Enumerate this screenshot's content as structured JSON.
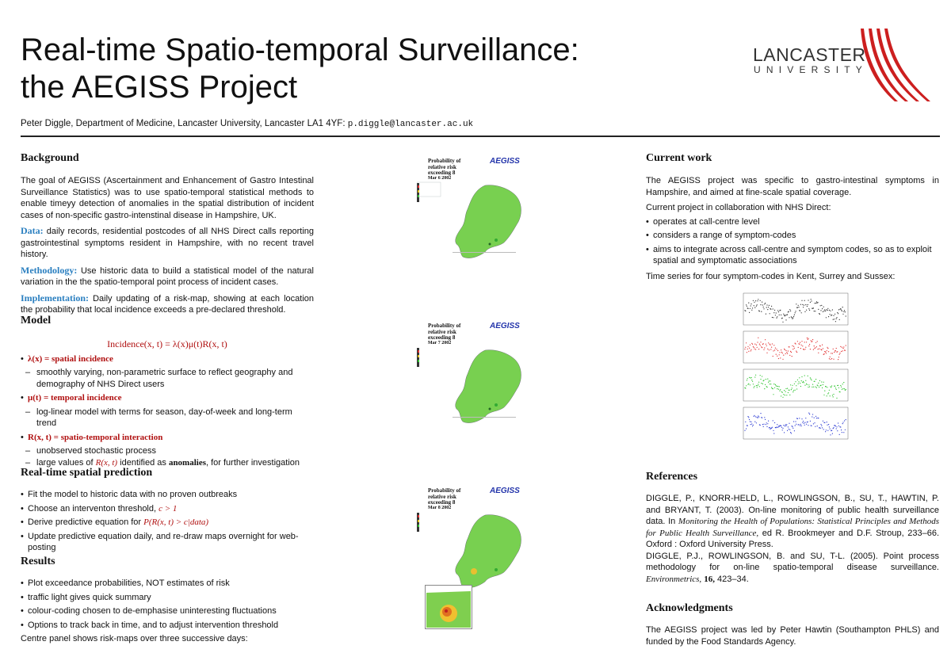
{
  "header": {
    "title_line1": "Real-time Spatio-temporal Surveillance:",
    "title_line2": "the AEGISS Project",
    "author": "Peter Diggle, Department of Medicine, Lancaster University, Lancaster LA1 4YF:",
    "email": "p.diggle@lancaster.ac.uk"
  },
  "logo": {
    "line1": "LANCASTER",
    "line2": "UNIVERSITY",
    "color": "#cc1f1f"
  },
  "background": {
    "heading": "Background",
    "intro": "The goal of AEGISS (Ascertainment and Enhancement of Gastro Intestinal Surveillance Statistics) was to use spatio-temporal statistical methods to enable timeyy detection of anomalies in the spatial distribution of incident cases of non-specific gastro-intenstinal disease in Hampshire, UK.",
    "data_label": "Data:",
    "data_text": "daily records, residential postcodes of all NHS Direct calls reporting gastrointestinal symptoms resident in Hampshire, with no recent travel history.",
    "method_label": "Methodology:",
    "method_text": "Use historic data to build a statistical model of the natural variation in the the spatio-temporal point process of incident cases.",
    "impl_label": "Implementation:",
    "impl_text": "Daily updating of a risk-map, showing at each location the probability that local incidence exceeds a pre-declared threshold."
  },
  "model": {
    "heading": "Model",
    "equation": "Incidence(x, t) = λ(x)μ(t)R(x, t)",
    "items": [
      {
        "term": "λ(x) = spatial incidence",
        "sub": "smoothly varying, non-parametric surface to reflect geography and demography of NHS Direct users"
      },
      {
        "term": "μ(t) = temporal incidence",
        "sub": "log-linear model with terms for season, day-of-week and long-term trend"
      },
      {
        "term": "R(x, t) = spatio-temporal interaction",
        "sub": "unobserved stochastic process"
      }
    ],
    "last_sub_a": "large values of",
    "last_sub_var": "R(x, t)",
    "last_sub_b": "identified as",
    "last_sub_kw": "anomalies",
    "last_sub_c": ", for further investigation"
  },
  "prediction": {
    "heading": "Real-time spatial prediction",
    "item1": "Fit the model to historic data with no proven outbreaks",
    "item2a": "Choose an interventon threshold,",
    "item2b": "c > 1",
    "item3a": "Derive predictive equation for",
    "item3b": "P(R(x, t) > c|data)",
    "item4": "Update predictive equation daily, and re-draw maps overnight for web-posting"
  },
  "results": {
    "heading": "Results",
    "items": [
      "Plot exceedance probabilities, NOT estimates of risk",
      "traffic light gives quick summary",
      "colour-coding chosen to de-emphasise uninteresting fluctuations",
      "Options to track back in time, and to adjust intervention threshold"
    ],
    "note": "Centre panel shows risk-maps over three successive days:"
  },
  "maps": [
    {
      "title": "Probability of relative risk exceeding 8",
      "date": "Mar 6 2002",
      "logo": "AEGISS"
    },
    {
      "title": "Probability of relative risk exceeding 8",
      "date": "Mar 7 2002",
      "logo": "AEGISS"
    },
    {
      "title": "Probability of relative risk exceeding 8",
      "date": "Mar 8 2002",
      "logo": "AEGISS"
    }
  ],
  "current": {
    "heading": "Current work",
    "p1": "The AEGISS project was specific to gastro-intestinal symptoms in Hampshire, and aimed at fine-scale spatial coverage.",
    "p2": "Current project in collaboration with NHS Direct:",
    "items": [
      "operates at call-centre level",
      "considers a range of symptom-codes",
      "aims to integrate across call-centre and symptom codes, so as to exploit spatial and symptomatic associations"
    ],
    "p3": "Time series for four symptom-codes in Kent, Surrey and Sussex:",
    "series_colors": [
      "#222222",
      "#e02020",
      "#20c020",
      "#2030d0"
    ]
  },
  "references": {
    "heading": "References",
    "ref1a": "DIGGLE, P., KNORR-HELD, L., ROWLINGSON, B., SU, T., HAWTIN, P. and BRYANT, T. (2003).  On-line monitoring of public health surveillance data.  In",
    "ref1b": "Monitoring the Health of Populations: Statistical Principles and Methods for Public Health Surveillance,",
    "ref1c": "ed R. Brookmeyer and D.F. Stroup, 233–66. Oxford : Oxford University Press.",
    "ref2a": "DIGGLE, P.J., ROWLINGSON, B. and SU, T-L. (2005).  Point process methodology for on-line spatio-temporal disease surveillance.",
    "ref2b": "Environmetrics,",
    "ref2c": "16,",
    "ref2d": "423–34."
  },
  "ack": {
    "heading": "Acknowledgments",
    "text": "The AEGISS project was led by Peter Hawtin (Southampton PHLS) and funded by the Food Standards Agency."
  }
}
